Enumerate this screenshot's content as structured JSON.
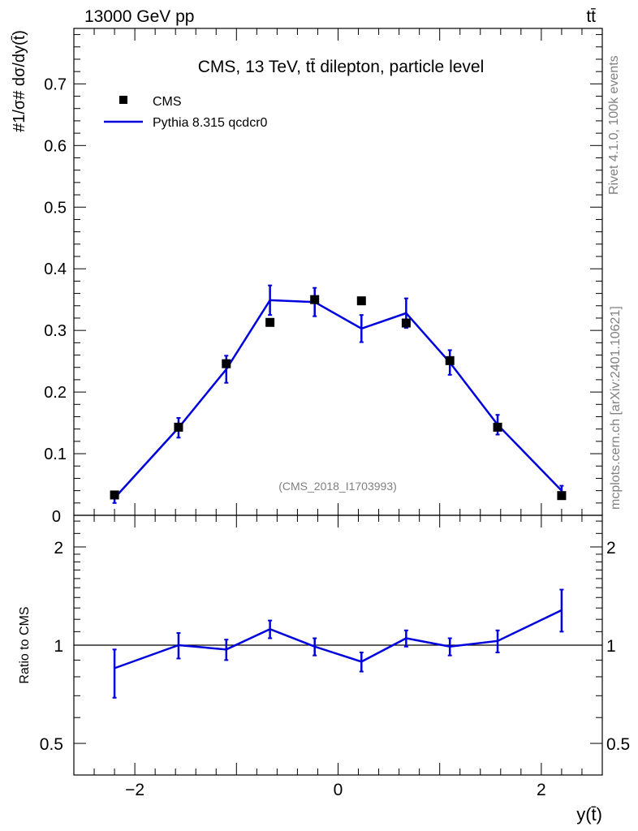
{
  "header": {
    "left": "13000 GeV pp",
    "right": "tt̄"
  },
  "side_text": {
    "rivet": "Rivet 4.1.0,  100k events",
    "mcplots": "mcplots.cern.ch [arXiv:2401.10621]"
  },
  "chart_data": [
    {
      "type": "scatter",
      "panel": "main",
      "title": "CMS, 13 TeV, tt̄ dilepton, particle level",
      "watermark": "(CMS_2018_I1703993)",
      "ylabel": "#1/σ# dσ/dy(t̄)",
      "xlim": [
        -2.6,
        2.6
      ],
      "ylim": [
        0,
        0.79
      ],
      "yticks": [
        0.1,
        0.2,
        0.3,
        0.4,
        0.5,
        0.6,
        0.7
      ],
      "ytick_labels": [
        "0.1",
        "0.2",
        "0.3",
        "0.4",
        "0.5",
        "0.6",
        "0.7"
      ],
      "y_bottom_label": "0",
      "x": [
        -2.2,
        -1.57,
        -1.1,
        -0.67,
        -0.23,
        0.23,
        0.67,
        1.1,
        1.57,
        2.2
      ],
      "series": [
        {
          "name": "CMS",
          "style": "markers",
          "color": "#000000",
          "values": [
            0.033,
            0.143,
            0.246,
            0.313,
            0.35,
            0.348,
            0.312,
            0.251,
            0.143,
            0.032
          ]
        },
        {
          "name": "Pythia 8.315 qcdcr0",
          "style": "line",
          "color": "#0000dd",
          "values": [
            0.028,
            0.142,
            0.237,
            0.349,
            0.346,
            0.303,
            0.328,
            0.248,
            0.147,
            0.04
          ],
          "errors": [
            0.008,
            0.016,
            0.022,
            0.024,
            0.023,
            0.022,
            0.024,
            0.02,
            0.016,
            0.008
          ]
        }
      ]
    },
    {
      "type": "line",
      "panel": "ratio",
      "ylabel": "Ratio to CMS",
      "xlabel": "y(t̄)",
      "xlim": [
        -2.6,
        2.6
      ],
      "ylim": [
        0.4,
        2.5
      ],
      "y_scale": "log",
      "yticks": [
        0.5,
        1,
        2
      ],
      "ytick_labels": [
        "0.5",
        "1",
        "2"
      ],
      "xticks": [
        -2,
        0,
        2
      ],
      "xtick_labels": [
        "−2",
        "0",
        "2"
      ],
      "reference": 1,
      "x": [
        -2.2,
        -1.57,
        -1.1,
        -0.67,
        -0.23,
        0.23,
        0.67,
        1.1,
        1.57,
        2.2
      ],
      "series": [
        {
          "name": "Pythia 8.315 qcdcr0",
          "color": "#0000dd",
          "values": [
            0.85,
            1.0,
            0.97,
            1.12,
            0.99,
            0.89,
            1.05,
            0.99,
            1.03,
            1.28
          ],
          "err_low": [
            0.16,
            0.09,
            0.07,
            0.07,
            0.06,
            0.06,
            0.06,
            0.06,
            0.08,
            0.18
          ],
          "err_high": [
            0.12,
            0.09,
            0.07,
            0.07,
            0.06,
            0.06,
            0.06,
            0.06,
            0.08,
            0.2
          ]
        }
      ]
    }
  ]
}
